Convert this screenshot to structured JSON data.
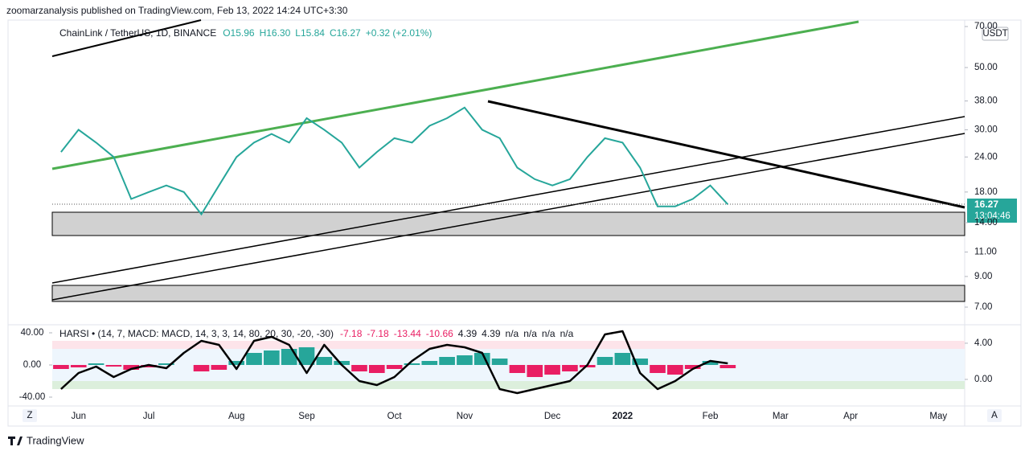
{
  "header": "zoomarzanalysis published on TradingView.com, Feb 13, 2022 14:24 UTC+3:30",
  "footer": "TradingView",
  "buttons": [
    "Z",
    "A"
  ],
  "currency": "USDT",
  "countdown": "13:04:46",
  "chart_data": [
    {
      "type": "line",
      "symbol": "ChainLink / TetherUS, 1D, BINANCE",
      "ohlc": [
        "O15.96",
        "H16.30",
        "L15.84",
        "C16.27",
        "+0.32 (+2.01%)"
      ],
      "last_price": 16.27,
      "color": "#26a69a",
      "log_scale": true,
      "categories": [
        "",
        "Jun",
        null,
        null,
        null,
        "Jul",
        null,
        null,
        null,
        null,
        "Aug",
        null,
        null,
        null,
        "Sep",
        null,
        null,
        null,
        null,
        "Oct",
        null,
        null,
        null,
        "Nov",
        null,
        null,
        null,
        null,
        "Dec",
        null,
        null,
        null,
        "2022",
        null,
        null,
        null,
        null,
        "Feb",
        null,
        null,
        null,
        "Mar",
        null,
        null,
        null,
        "Apr",
        null,
        null,
        null,
        null,
        "May",
        null
      ],
      "values": [
        25,
        30,
        27,
        24,
        17,
        18,
        19,
        18,
        15,
        19,
        24,
        27,
        29,
        27,
        33,
        30,
        27,
        22,
        25,
        28,
        27,
        31,
        33,
        36,
        30,
        28,
        22,
        20,
        19,
        20,
        24,
        28,
        27,
        22,
        16,
        16,
        17,
        19,
        16.27,
        null,
        null,
        null,
        null,
        null,
        null,
        null,
        null,
        null,
        null,
        null,
        null,
        null
      ],
      "ylim": [
        6.3,
        73.8
      ],
      "yticks": [
        {
          "value": 7,
          "label": "7.00"
        },
        {
          "value": 9,
          "label": "9.00"
        },
        {
          "value": 11,
          "label": "11.00"
        },
        {
          "value": 14,
          "label": "14.00"
        },
        {
          "value": 18,
          "label": "18.00"
        },
        {
          "value": 24,
          "label": "24.00"
        },
        {
          "value": 30,
          "label": "30.00"
        },
        {
          "value": 38,
          "label": "38.00"
        },
        {
          "value": 50,
          "label": "50.00"
        },
        {
          "value": 70,
          "label": "70.00"
        }
      ]
    },
    {
      "type": "bar",
      "title": "HARSI • (14, 7, MACD: MACD, 14, 3, 3, 14, 80, 20, 30, -20, -30)",
      "legend_values": [
        -7.18,
        -7.18,
        -13.44,
        -10.66,
        4.39,
        4.39,
        "n/a",
        "n/a",
        "n/a",
        "n/a"
      ],
      "color": "#26a69a",
      "negative_color": "#e91e63",
      "line_color": "#000000",
      "histogram": [
        -5,
        -3,
        2,
        -2,
        -6,
        -3,
        2,
        0,
        -8,
        -6,
        5,
        15,
        18,
        20,
        22,
        10,
        5,
        -8,
        -10,
        -5,
        2,
        5,
        10,
        12,
        15,
        8,
        -10,
        -15,
        -12,
        -8,
        -3,
        10,
        15,
        8,
        -10,
        -12,
        -5,
        5,
        -4
      ],
      "line": [
        -30,
        -10,
        -2,
        -15,
        -5,
        0,
        -4,
        15,
        30,
        25,
        -5,
        30,
        35,
        25,
        -10,
        25,
        0,
        -20,
        -25,
        -15,
        5,
        20,
        25,
        22,
        15,
        -30,
        -35,
        -30,
        -25,
        -20,
        0,
        38,
        42,
        -10,
        -30,
        -20,
        -5,
        5,
        2
      ],
      "ylim": [
        -49,
        50
      ],
      "yticks": [
        {
          "value": 40,
          "label": "40.00"
        },
        {
          "value": 0,
          "label": "0.00"
        },
        {
          "value": -40,
          "label": "-40.00"
        }
      ],
      "y2lim": [
        -2.76,
        6.04
      ],
      "y2ticks": [
        {
          "value": 4,
          "label": "4.00"
        },
        {
          "value": 0,
          "label": "0.00"
        }
      ]
    }
  ]
}
